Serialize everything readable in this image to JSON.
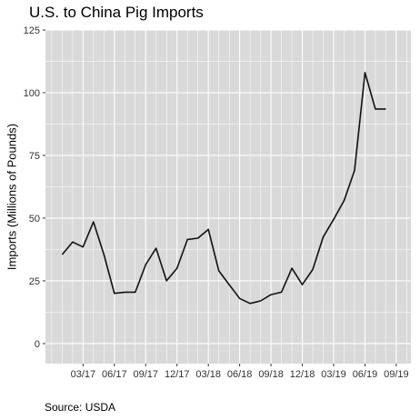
{
  "chart_data": {
    "type": "line",
    "title": "U.S. to China Pig Imports",
    "xlabel": "",
    "ylabel": "Imports (Millions of Pounds)",
    "caption": "Source: USDA",
    "ylim": [
      -8,
      125
    ],
    "yticks": [
      0,
      25,
      50,
      75,
      100,
      125
    ],
    "xticks": [
      "03/17",
      "06/17",
      "09/17",
      "12/17",
      "03/18",
      "06/18",
      "09/18",
      "12/18",
      "03/19",
      "06/19",
      "09/19"
    ],
    "xtick_months": [
      3,
      6,
      9,
      12,
      15,
      18,
      21,
      24,
      27,
      30,
      33
    ],
    "xlim_months": [
      -0.6,
      34.4
    ],
    "grid": true,
    "background": "#d9d9d9",
    "grid_color": "#ffffff",
    "line_color": "#111111",
    "series": [
      {
        "x": [
          1,
          2,
          3,
          4,
          5,
          6,
          7,
          8,
          9,
          10,
          11,
          12,
          13,
          14,
          15,
          16,
          17,
          18,
          19,
          20,
          21,
          22,
          23,
          24,
          25,
          26,
          27,
          28,
          29,
          30,
          31,
          32
        ],
        "values": [
          35.5,
          40.5,
          38.5,
          48.5,
          35.5,
          20,
          20.5,
          20.5,
          31.5,
          38,
          25,
          30,
          41.5,
          42,
          45.5,
          29,
          23.5,
          18,
          16,
          17,
          19.5,
          20.5,
          30,
          23.5,
          29.5,
          42.5,
          49.5,
          57,
          69,
          108,
          93.5,
          93.5
        ]
      }
    ]
  }
}
